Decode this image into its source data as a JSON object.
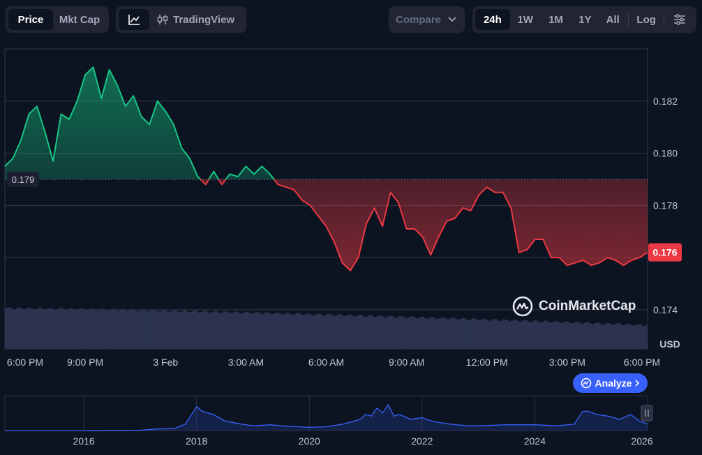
{
  "toolbar": {
    "view_tabs": [
      {
        "label": "Price",
        "active": true
      },
      {
        "label": "Mkt Cap",
        "active": false
      }
    ],
    "tradingview_label": "TradingView",
    "compare_label": "Compare",
    "ranges": [
      {
        "label": "24h",
        "active": true
      },
      {
        "label": "1W",
        "active": false
      },
      {
        "label": "1M",
        "active": false
      },
      {
        "label": "1Y",
        "active": false
      },
      {
        "label": "All",
        "active": false
      }
    ],
    "log_label": "Log"
  },
  "colors": {
    "up": "#16c784",
    "down": "#ea3943",
    "volume": "#2b3350",
    "nav_line": "#3861fb",
    "background": "#0d1421"
  },
  "brand": "CoinMarketCap",
  "analyze_label": "Analyze",
  "chart_data": [
    {
      "type": "line",
      "baseline": 0.179,
      "baseline_label": "0.179",
      "current_label": "0.176",
      "currency": "USD",
      "ylim": [
        0.1725,
        0.184
      ],
      "y_ticks": [
        0.174,
        0.176,
        0.178,
        0.18,
        0.182
      ],
      "y_tick_labels": [
        "0.174",
        "0.176",
        "0.178",
        "0.180",
        "0.182"
      ],
      "x_tick_labels": [
        "6:00 PM",
        "9:00 PM",
        "3 Feb",
        "3:00 AM",
        "6:00 AM",
        "9:00 AM",
        "12:00 PM",
        "3:00 PM",
        "6:00 PM"
      ],
      "x_hours": [
        0,
        3,
        6,
        9,
        12,
        15,
        18,
        21,
        24
      ],
      "x_range_hours": [
        0,
        24
      ],
      "grid": true,
      "series": [
        {
          "x_hours": [
            0,
            0.3,
            0.6,
            0.9,
            1.2,
            1.5,
            1.8,
            2.1,
            2.4,
            2.7,
            3.0,
            3.3,
            3.6,
            3.9,
            4.2,
            4.5,
            4.8,
            5.1,
            5.4,
            5.7,
            6.0,
            6.3,
            6.6,
            6.9,
            7.2,
            7.5,
            7.8,
            8.1,
            8.4,
            8.7,
            9.0,
            9.3,
            9.6,
            9.9,
            10.2,
            10.5,
            10.8,
            11.1,
            11.4,
            11.7,
            12.0,
            12.3,
            12.6,
            12.9,
            13.2,
            13.5,
            13.8,
            14.1,
            14.4,
            14.7,
            15.0,
            15.3,
            15.6,
            15.9,
            16.2,
            16.5,
            16.8,
            17.1,
            17.4,
            17.7,
            18.0,
            18.3,
            18.6,
            18.9,
            19.2,
            19.5,
            19.8,
            20.1,
            20.4,
            20.7,
            21.0,
            21.3,
            21.6,
            21.9,
            22.2,
            22.5,
            22.8,
            23.1,
            23.4,
            23.7,
            24.0
          ],
          "values": [
            0.1795,
            0.1798,
            0.1805,
            0.1815,
            0.1818,
            0.1808,
            0.1797,
            0.1815,
            0.1813,
            0.182,
            0.183,
            0.1833,
            0.1821,
            0.1832,
            0.1826,
            0.1818,
            0.1822,
            0.1814,
            0.1811,
            0.182,
            0.1816,
            0.1811,
            0.1802,
            0.1798,
            0.1791,
            0.1788,
            0.1793,
            0.1788,
            0.1792,
            0.1791,
            0.1795,
            0.1792,
            0.1795,
            0.1792,
            0.1788,
            0.1787,
            0.1786,
            0.1782,
            0.178,
            0.1776,
            0.1772,
            0.1766,
            0.1758,
            0.1755,
            0.176,
            0.1773,
            0.1779,
            0.1772,
            0.1785,
            0.1781,
            0.1771,
            0.1771,
            0.1768,
            0.1761,
            0.1768,
            0.1774,
            0.1775,
            0.1779,
            0.1778,
            0.1784,
            0.1787,
            0.1785,
            0.1785,
            0.1779,
            0.1762,
            0.1763,
            0.1767,
            0.1767,
            0.176,
            0.176,
            0.1757,
            0.1758,
            0.1759,
            0.1757,
            0.1758,
            0.176,
            0.1759,
            0.1757,
            0.1759,
            0.176,
            0.1762
          ]
        }
      ]
    },
    {
      "type": "area",
      "x_tick_labels": [
        "2016",
        "2018",
        "2020",
        "2022",
        "2024",
        "2026"
      ],
      "x_ticks": [
        2016,
        2018,
        2020,
        2022,
        2024,
        2026
      ],
      "x_range": [
        2014.6,
        2026.0
      ],
      "series": [
        {
          "x": [
            2014.6,
            2016.0,
            2017.0,
            2017.3,
            2017.6,
            2017.8,
            2017.95,
            2018.0,
            2018.1,
            2018.3,
            2018.5,
            2018.8,
            2019.0,
            2019.3,
            2019.5,
            2019.8,
            2020.0,
            2020.3,
            2020.6,
            2020.9,
            2021.0,
            2021.1,
            2021.2,
            2021.3,
            2021.4,
            2021.5,
            2021.6,
            2021.8,
            2022.0,
            2022.2,
            2022.5,
            2022.8,
            2023.0,
            2023.5,
            2024.0,
            2024.4,
            2024.7,
            2024.85,
            2024.95,
            2025.1,
            2025.3,
            2025.5,
            2025.7,
            2025.85,
            2026.0
          ],
          "values": [
            0,
            0,
            0.01,
            0.05,
            0.06,
            0.2,
            0.6,
            0.75,
            0.6,
            0.5,
            0.3,
            0.2,
            0.15,
            0.18,
            0.15,
            0.12,
            0.1,
            0.12,
            0.2,
            0.35,
            0.5,
            0.45,
            0.7,
            0.55,
            0.8,
            0.45,
            0.5,
            0.35,
            0.4,
            0.28,
            0.2,
            0.15,
            0.15,
            0.18,
            0.18,
            0.15,
            0.2,
            0.6,
            0.6,
            0.5,
            0.45,
            0.35,
            0.5,
            0.3,
            0.2
          ]
        }
      ]
    }
  ]
}
